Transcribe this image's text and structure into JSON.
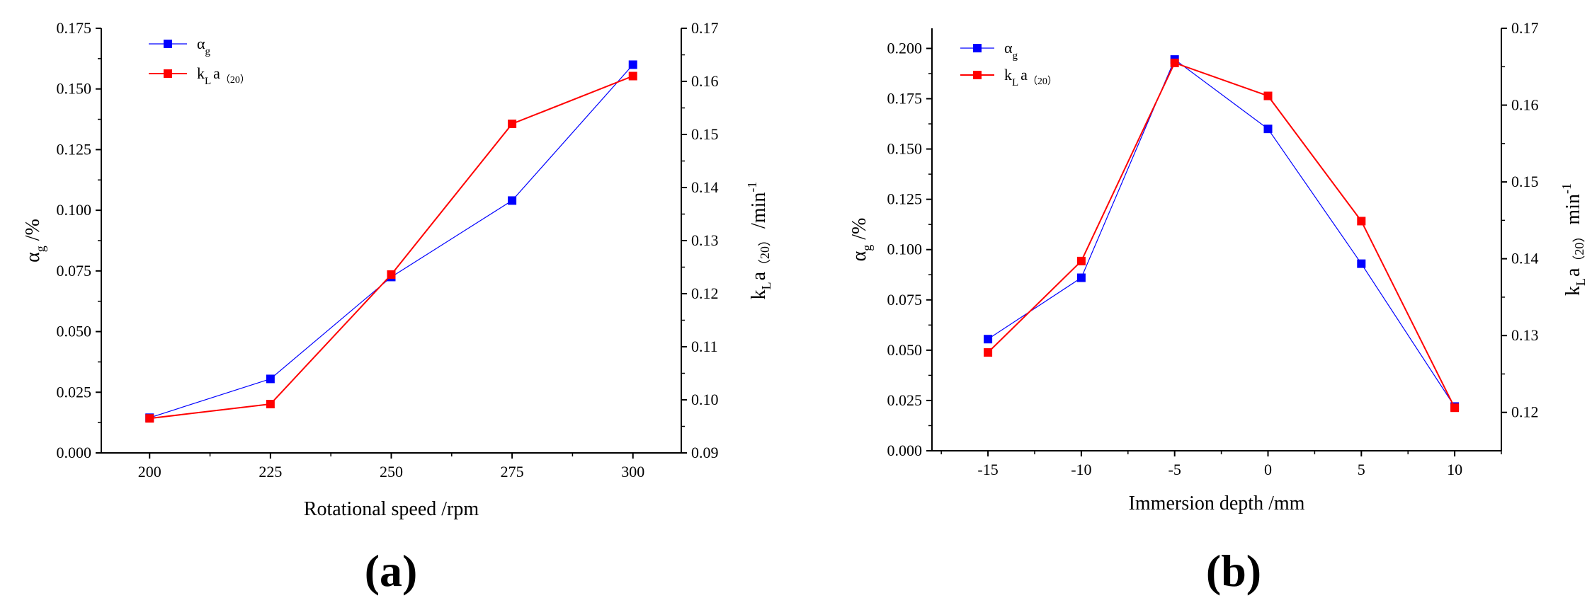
{
  "chart_data": [
    {
      "type": "line",
      "panel_label": "(a)",
      "xlabel": "Rotational speed /rpm",
      "ylabel": {
        "main": "α",
        "sub": "g",
        "rest": " /%"
      },
      "y2label": {
        "k": "k",
        "ksub": "L",
        "a": "a",
        "paren": "（20）",
        "unit": " /min",
        "sup": "-1"
      },
      "x": [
        200,
        225,
        250,
        275,
        300
      ],
      "xlim": [
        190,
        310
      ],
      "xticks": [
        "200",
        "225",
        "250",
        "275",
        "300"
      ],
      "ylim": [
        0,
        0.175
      ],
      "yticks": [
        "0.000",
        "0.025",
        "0.050",
        "0.075",
        "0.100",
        "0.125",
        "0.150",
        "0.175"
      ],
      "y2lim": [
        0.09,
        0.17
      ],
      "y2ticks": [
        "0.09",
        "0.10",
        "0.11",
        "0.12",
        "0.13",
        "0.14",
        "0.15",
        "0.16",
        "0.17"
      ],
      "legend": {
        "placement": "top-left",
        "entries": [
          {
            "main": "α",
            "sub": "g",
            "rest": ""
          },
          {
            "main": "k",
            "sub": "L",
            "rest": "a",
            "paren": "（20）"
          }
        ]
      },
      "series": [
        {
          "axis": "left",
          "color": "#0000ff",
          "values": [
            0.0145,
            0.0305,
            0.0725,
            0.104,
            0.16
          ]
        },
        {
          "axis": "right",
          "color": "#ff0000",
          "values": [
            0.0965,
            0.0992,
            0.1236,
            0.152,
            0.161
          ]
        }
      ]
    },
    {
      "type": "line",
      "panel_label": "(b)",
      "xlabel": "Immersion depth /mm",
      "ylabel": {
        "main": "α",
        "sub": "g",
        "rest": " /%"
      },
      "y2label": {
        "k": "k",
        "ksub": "L",
        "a": "a",
        "paren": "（20）",
        "unit": "  min",
        "sup": "-1"
      },
      "x": [
        -15,
        -10,
        -5,
        0,
        5,
        10
      ],
      "xlim": [
        -18,
        12.5
      ],
      "xticks": [
        "-15",
        "-10",
        "-5",
        "0",
        "5",
        "10"
      ],
      "ylim": [
        0,
        0.21
      ],
      "yticks": [
        "0.000",
        "0.025",
        "0.050",
        "0.075",
        "0.100",
        "0.125",
        "0.150",
        "0.175",
        "0.200"
      ],
      "y2lim": [
        0.115,
        0.17
      ],
      "y2ticks": [
        "0.12",
        "0.13",
        "0.14",
        "0.15",
        "0.16",
        "0.17"
      ],
      "legend": {
        "placement": "top-left",
        "entries": [
          {
            "main": "α",
            "sub": "g",
            "rest": ""
          },
          {
            "main": "k",
            "sub": "L",
            "rest": "a",
            "paren": "（20）"
          }
        ]
      },
      "series": [
        {
          "axis": "left",
          "color": "#0000ff",
          "values": [
            0.0555,
            0.086,
            0.1945,
            0.16,
            0.093,
            0.022
          ]
        },
        {
          "axis": "right",
          "color": "#ff0000",
          "values": [
            0.1278,
            0.1397,
            0.1655,
            0.1612,
            0.1449,
            0.1206
          ]
        }
      ]
    }
  ]
}
